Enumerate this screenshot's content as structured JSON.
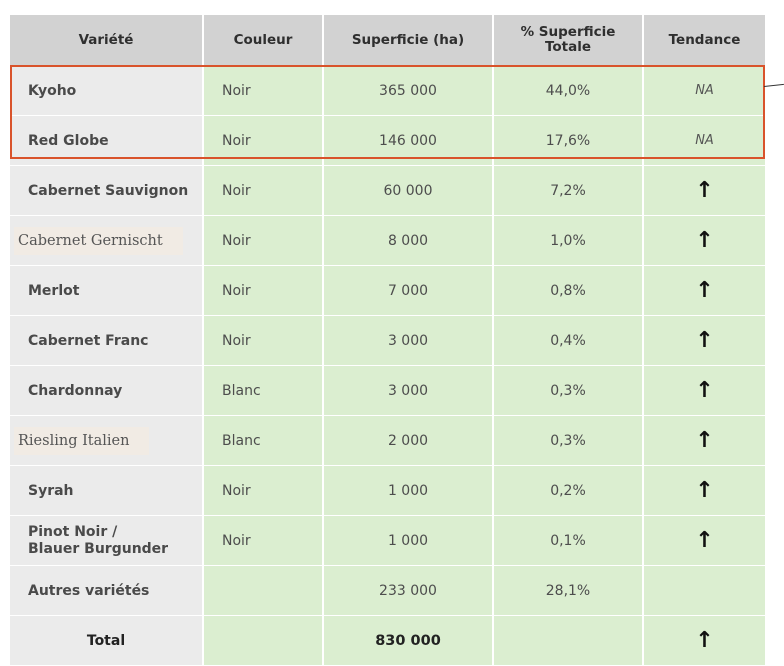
{
  "headers": {
    "variete": "Variété",
    "couleur": "Couleur",
    "superficie": "Superficie (ha)",
    "pct": "% Superficie Totale",
    "tendance": "Tendance"
  },
  "rows": [
    {
      "variete": "Kyoho",
      "couleur": "Noir",
      "superficie": "365 000",
      "pct": "44,0%",
      "tendance": "NA"
    },
    {
      "variete": "Red Globe",
      "couleur": "Noir",
      "superficie": "146 000",
      "pct": "17,6%",
      "tendance": "NA"
    },
    {
      "variete": "Cabernet Sauvignon",
      "couleur": "Noir",
      "superficie": "60 000",
      "pct": "7,2%",
      "tendance": "↑"
    },
    {
      "variete": "Cabernet Gernischt",
      "couleur": "Noir",
      "superficie": "8 000",
      "pct": "1,0%",
      "tendance": "↑"
    },
    {
      "variete": "Merlot",
      "couleur": "Noir",
      "superficie": "7 000",
      "pct": "0,8%",
      "tendance": "↑"
    },
    {
      "variete": "Cabernet Franc",
      "couleur": "Noir",
      "superficie": "3 000",
      "pct": "0,4%",
      "tendance": "↑"
    },
    {
      "variete": "Chardonnay",
      "couleur": "Blanc",
      "superficie": "3 000",
      "pct": "0,3%",
      "tendance": "↑"
    },
    {
      "variete": "Riesling Italien",
      "couleur": "Blanc",
      "superficie": "2 000",
      "pct": "0,3%",
      "tendance": "↑"
    },
    {
      "variete": "Syrah",
      "couleur": "Noir",
      "superficie": "1 000",
      "pct": "0,2%",
      "tendance": "↑"
    },
    {
      "variete_line1": "Pinot Noir /",
      "variete_line2": "Blauer Burgunder",
      "couleur": "Noir",
      "superficie": "1 000",
      "pct": "0,1%",
      "tendance": "↑"
    },
    {
      "variete": "Autres variétés",
      "couleur": "",
      "superficie": "233 000",
      "pct": "28,1%",
      "tendance": ""
    }
  ],
  "total": {
    "label": "Total",
    "superficie": "830 000",
    "tendance": "↑"
  },
  "colors": {
    "header_bg": "#d2d2d2",
    "name_bg": "#ebebeb",
    "data_bg": "#dbeed0",
    "highlight_border": "#d9532b"
  }
}
